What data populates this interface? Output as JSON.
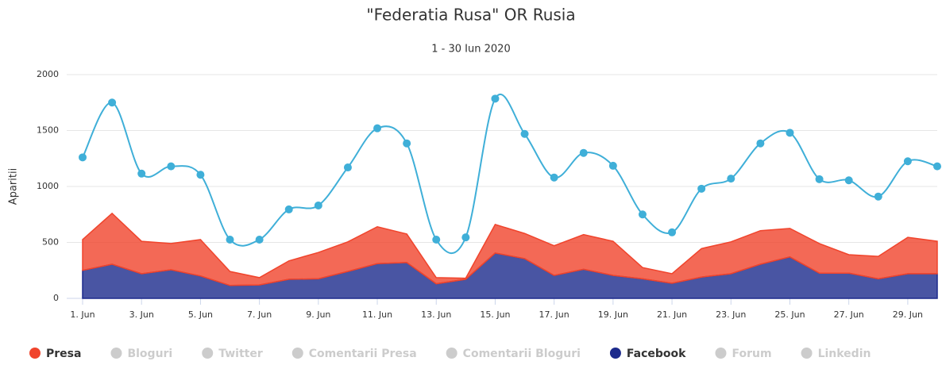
{
  "chart_data": {
    "type": "stacked-area-line",
    "title": "\"Federatia Rusa\" OR Rusia",
    "subtitle": "1 - 30 Iun 2020",
    "y_label": "Aparitii",
    "categories": [
      "1. Jun",
      null,
      "3. Jun",
      null,
      "5. Jun",
      null,
      "7. Jun",
      null,
      "9. Jun",
      null,
      "11. Jun",
      null,
      "13. Jun",
      null,
      "15. Jun",
      null,
      "17. Jun",
      null,
      "19. Jun",
      null,
      "21. Jun",
      null,
      "23. Jun",
      null,
      "25. Jun",
      null,
      "27. Jun",
      null,
      "29. Jun",
      null
    ],
    "ylim": [
      0,
      2000
    ],
    "yticks": [
      0,
      500,
      1000,
      1500,
      2000
    ],
    "grid": true,
    "line": {
      "color": "#3fafd8",
      "values": [
        1260,
        1750,
        1115,
        1180,
        1105,
        525,
        525,
        795,
        830,
        1170,
        1520,
        1385,
        525,
        545,
        1785,
        1470,
        1080,
        1300,
        1185,
        750,
        590,
        980,
        1070,
        1385,
        1480,
        1065,
        1055,
        910,
        1225,
        1180
      ]
    },
    "series": [
      {
        "name": "Presa",
        "color": "#f0442c",
        "visible": true,
        "values": [
          275,
          455,
          290,
          235,
          325,
          125,
          65,
          165,
          235,
          265,
          330,
          255,
          55,
          10,
          255,
          225,
          265,
          310,
          305,
          100,
          85,
          255,
          285,
          300,
          255,
          265,
          165,
          200,
          325,
          290
        ]
      },
      {
        "name": "Bloguri",
        "visible": false
      },
      {
        "name": "Twitter",
        "visible": false
      },
      {
        "name": "Comentarii Presa",
        "visible": false
      },
      {
        "name": "Comentarii Bloguri",
        "visible": false
      },
      {
        "name": "Facebook",
        "color": "#1c2a8c",
        "visible": true,
        "values": [
          250,
          305,
          220,
          255,
          200,
          115,
          120,
          170,
          175,
          240,
          310,
          320,
          130,
          170,
          405,
          355,
          205,
          260,
          205,
          175,
          135,
          190,
          220,
          305,
          370,
          225,
          225,
          175,
          220,
          220
        ]
      },
      {
        "name": "Forum",
        "visible": false
      },
      {
        "name": "Linkedin",
        "visible": false
      }
    ]
  }
}
